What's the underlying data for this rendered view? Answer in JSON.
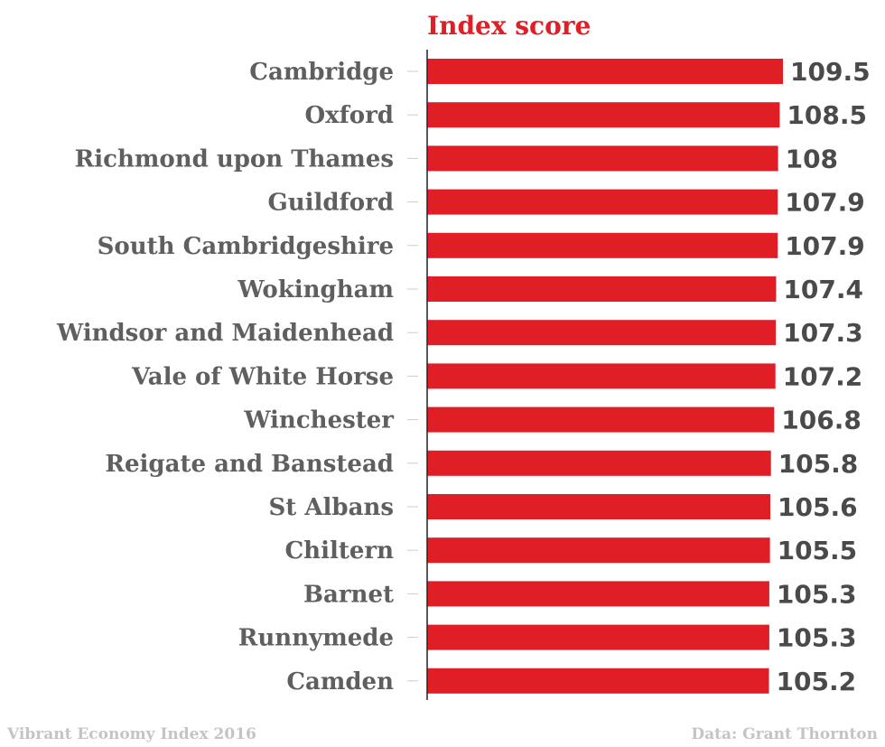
{
  "chart_data": {
    "type": "bar",
    "orientation": "horizontal",
    "series": [
      {
        "name": "Index score",
        "color": "#e01e26",
        "values": [
          109.5,
          108.5,
          108,
          107.9,
          107.9,
          107.4,
          107.3,
          107.2,
          106.8,
          105.8,
          105.6,
          105.5,
          105.3,
          105.3,
          105.2
        ]
      }
    ],
    "categories": [
      "Cambridge",
      "Oxford",
      "Richmond upon Thames",
      "Guildford",
      "South Cambridgeshire",
      "Wokingham",
      "Windsor and Maidenhead",
      "Vale of White Horse",
      "Winchester",
      "Reigate and Banstead",
      "St Albans",
      "Chiltern",
      "Barnet",
      "Runnymede",
      "Camden"
    ],
    "value_labels": [
      "109.5",
      "108.5",
      "108",
      "107.9",
      "107.9",
      "107.4",
      "107.3",
      "107.2",
      "106.8",
      "105.8",
      "105.6",
      "105.5",
      "105.3",
      "105.3",
      "105.2"
    ],
    "xlim": [
      0,
      109.5
    ],
    "grid": false,
    "legend": "none"
  },
  "footer": {
    "left": "Vibrant Economy Index 2016",
    "right": "Data: Grant Thornton"
  }
}
